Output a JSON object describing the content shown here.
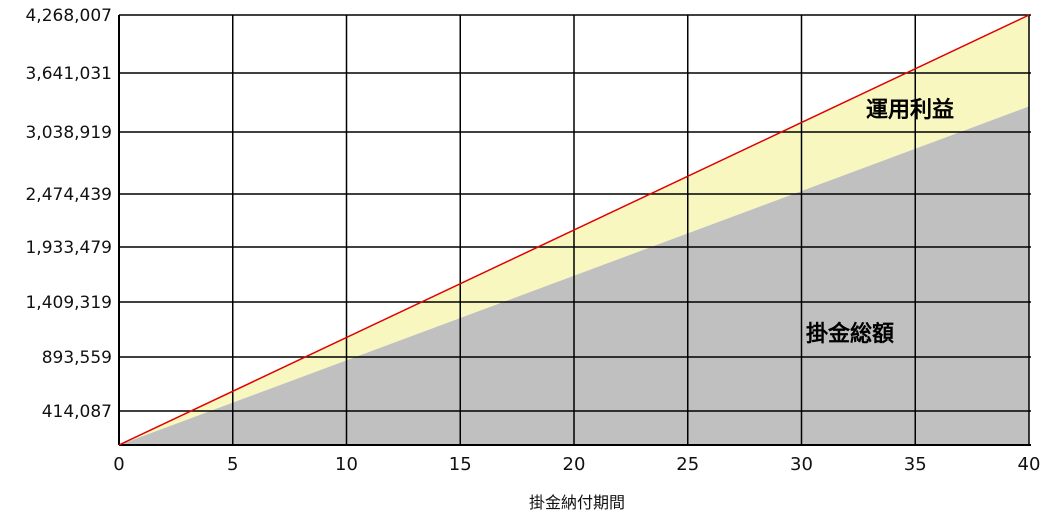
{
  "chart_data": {
    "type": "area",
    "xlabel": "掛金納付期間",
    "ylabel": "",
    "xlim": [
      0,
      40
    ],
    "x_ticks": [
      "0",
      "5",
      "10",
      "15",
      "20",
      "25",
      "30",
      "35",
      "40"
    ],
    "y_ticks": [
      {
        "label": "414,087",
        "value": 414087
      },
      {
        "label": "893,559",
        "value": 893559
      },
      {
        "label": "1,409,319",
        "value": 1409319
      },
      {
        "label": "1,933,479",
        "value": 1933479
      },
      {
        "label": "2,474,439",
        "value": 2474439
      },
      {
        "label": "3,038,919",
        "value": 3038919
      },
      {
        "label": "3,641,031",
        "value": 3641031
      },
      {
        "label": "4,268,007",
        "value": 4268007
      }
    ],
    "grid": true,
    "series": [
      {
        "name": "掛金総額",
        "x": [
          0,
          40
        ],
        "values": [
          0,
          3300000
        ]
      },
      {
        "name": "運用利益",
        "x": [
          0,
          40
        ],
        "values": [
          0,
          4268007
        ]
      }
    ],
    "colors": {
      "principal_fill": "#c0c0c0",
      "profit_fill": "#f7f7bf",
      "total_line": "#e00000",
      "grid": "#000000"
    }
  }
}
